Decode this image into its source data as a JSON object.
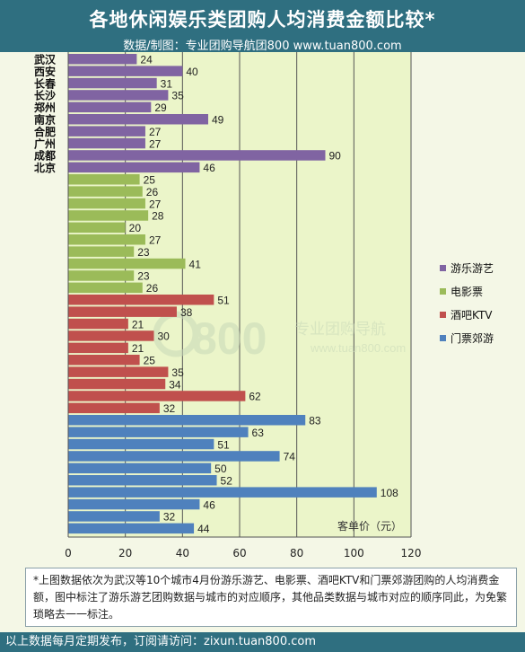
{
  "header": {
    "title": "各地休闲娱乐类团购人均消费金额比较*",
    "subtitle": "数据/制图：专业团购导航团800    www.tuan800.com"
  },
  "watermark": {
    "logo": "800",
    "tagline": "专业团购导航",
    "url": "www.tuan800.com"
  },
  "chart_data": {
    "type": "bar",
    "orientation": "horizontal",
    "categories": [
      "武汉",
      "西安",
      "长春",
      "长沙",
      "郑州",
      "南京",
      "合肥",
      "广州",
      "成都",
      "北京"
    ],
    "series": [
      {
        "name": "游乐游艺",
        "color": "#8064a2",
        "values": [
          24,
          40,
          31,
          35,
          29,
          49,
          27,
          27,
          90,
          46
        ]
      },
      {
        "name": "电影票",
        "color": "#9bbb59",
        "values": [
          25,
          26,
          27,
          28,
          20,
          27,
          23,
          41,
          23,
          26
        ]
      },
      {
        "name": "酒吧KTV",
        "color": "#c0504d",
        "values": [
          51,
          38,
          21,
          30,
          21,
          25,
          35,
          34,
          62,
          32
        ]
      },
      {
        "name": "门票郊游",
        "color": "#4f81bd",
        "values": [
          83,
          63,
          51,
          74,
          50,
          52,
          108,
          46,
          32,
          44
        ]
      }
    ],
    "x_ticks": [
      0,
      20,
      40,
      60,
      80,
      100,
      120
    ],
    "xlim": [
      0,
      120
    ],
    "xlabel": "客单价（元）",
    "grid": true,
    "legend_position": "right"
  },
  "note": "*上图数据依次为武汉等10个城市4月份游乐游艺、电影票、酒吧KTV和门票郊游团购的人均消费金额，图中标注了游乐游艺团购数据与城市的对应顺序，其他品类数据与城市对应的顺序同此，为免繁琐略去一一标注。",
  "footer": "以上数据每月定期发布，订阅请访问：zixun.tuan800.com"
}
